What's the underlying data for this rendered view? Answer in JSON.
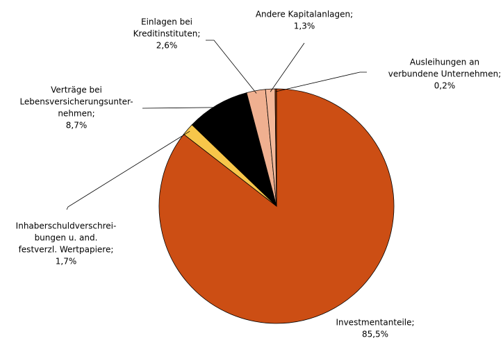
{
  "chart_data": {
    "type": "pie",
    "categories": [
      [
        "Investmentanteile;"
      ],
      [
        "Inhaberschuldverschrei-",
        "bungen u. and.",
        "festverzl. Wertpapiere;"
      ],
      [
        "Verträge bei",
        "Lebensversicherungsunter-",
        "nehmen;"
      ],
      [
        "Einlagen bei",
        "Kreditinstituten;"
      ],
      [
        "Andere Kapitalanlagen;"
      ],
      [
        "Ausleihungen an",
        "verbundene Unternehmen;"
      ]
    ],
    "values": [
      85.5,
      1.7,
      8.7,
      2.6,
      1.3,
      0.2
    ],
    "value_labels": [
      "85,5%",
      "1,7%",
      "8,7%",
      "2,6%",
      "1,3%",
      "0,2%"
    ],
    "colors": [
      "#cc4e14",
      "#f7c64a",
      "#000000",
      "#f0b090",
      "#f4b89a",
      "#8b3a10"
    ]
  }
}
